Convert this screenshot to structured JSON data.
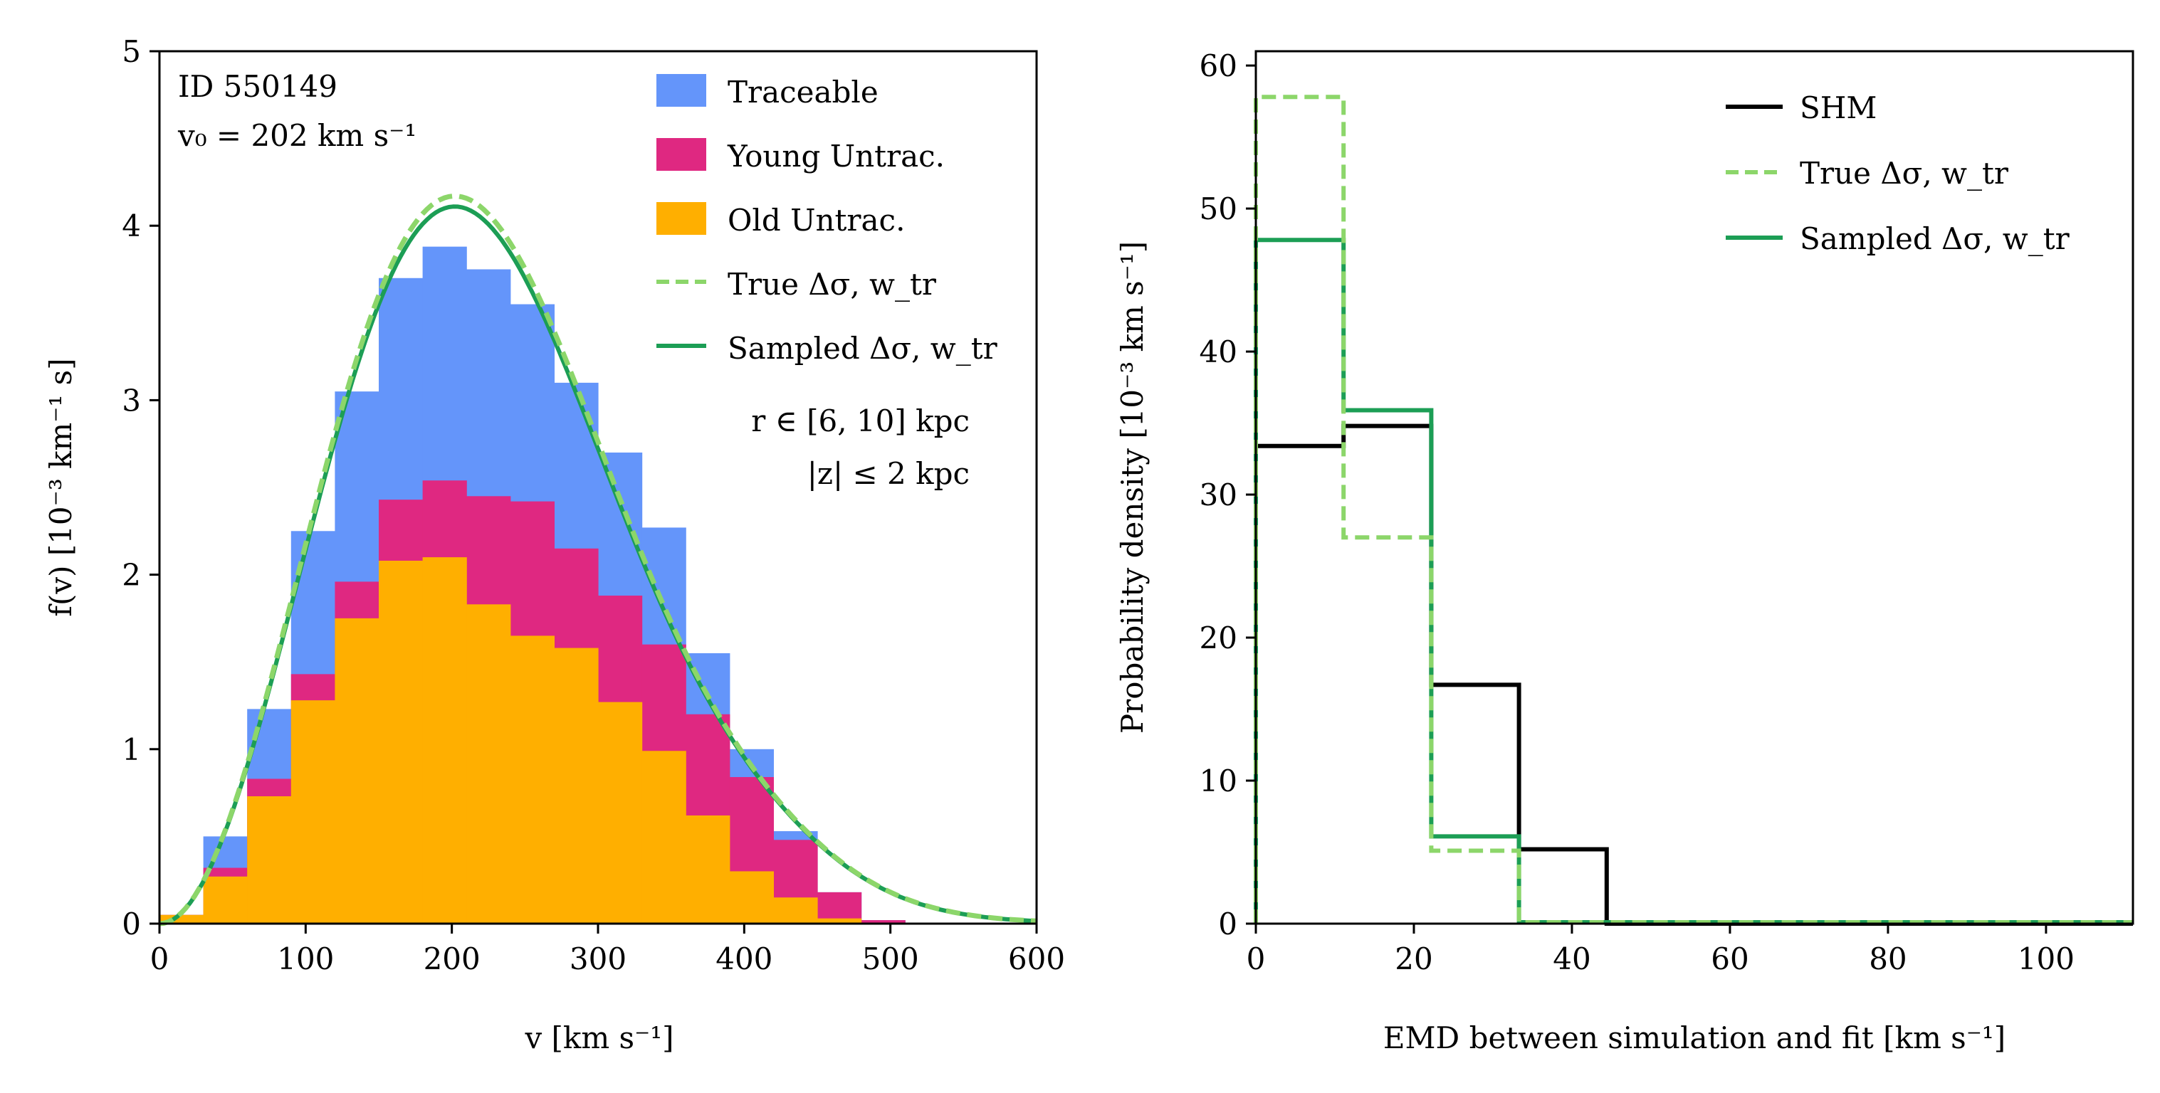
{
  "colors": {
    "traceable": "#6495FA",
    "young": "#DF2881",
    "old": "#FFAF00",
    "true_fit": "#8CD66A",
    "sampled_fit": "#1C9E55",
    "shm": "#000000"
  },
  "chart_data": [
    {
      "type": "bar",
      "subtype": "stacked-histogram-with-fit-curves",
      "title": "",
      "annotation": {
        "id": "ID 550149",
        "v0": "v₀ = 202 km s⁻¹"
      },
      "region_text": [
        "r ∈ [6, 10] kpc",
        "|z| ≤ 2 kpc"
      ],
      "xlabel": "v [km s⁻¹]",
      "ylabel": "f(v) [10⁻³ km⁻¹ s]",
      "xlim": [
        0,
        600
      ],
      "ylim": [
        0,
        5
      ],
      "xticks": [
        0,
        100,
        200,
        300,
        400,
        500,
        600
      ],
      "yticks": [
        0,
        1,
        2,
        3,
        4,
        5
      ],
      "bin_edges": [
        0,
        30,
        60,
        90,
        120,
        150,
        180,
        210,
        240,
        270,
        300,
        330,
        360,
        390,
        420,
        450,
        480,
        510
      ],
      "series": [
        {
          "name": "Old Untrac.",
          "cumulative": [
            0.05,
            0.27,
            0.73,
            1.28,
            1.75,
            2.08,
            2.1,
            1.83,
            1.65,
            1.58,
            1.27,
            0.99,
            0.62,
            0.3,
            0.15,
            0.03,
            0.0
          ]
        },
        {
          "name": "Young Untrac.",
          "cumulative": [
            0.05,
            0.32,
            0.83,
            1.43,
            1.96,
            2.43,
            2.54,
            2.45,
            2.42,
            2.15,
            1.88,
            1.6,
            1.2,
            0.84,
            0.48,
            0.18,
            0.02
          ]
        },
        {
          "name": "Traceable",
          "cumulative": [
            0.05,
            0.5,
            1.23,
            2.25,
            3.05,
            3.7,
            3.88,
            3.75,
            3.55,
            3.1,
            2.7,
            2.27,
            1.55,
            1.0,
            0.53,
            0.18,
            0.02
          ]
        }
      ],
      "curves": [
        {
          "name": "True Δσ, w_tr",
          "style": "dashed",
          "v0": 202,
          "scale": 4.17,
          "tail_bump": 0.09
        },
        {
          "name": "Sampled Δσ, w_tr",
          "style": "solid",
          "v0": 202,
          "scale": 4.11,
          "tail_bump": 0.09
        }
      ],
      "legend": {
        "placement": "top-right",
        "entries": [
          {
            "label": "Traceable",
            "kind": "patch"
          },
          {
            "label": "Young Untrac.",
            "kind": "patch"
          },
          {
            "label": "Old Untrac.",
            "kind": "patch"
          },
          {
            "label": "True Δσ, w_tr",
            "kind": "dashed-line"
          },
          {
            "label": "Sampled Δσ, w_tr",
            "kind": "solid-line"
          }
        ]
      }
    },
    {
      "type": "bar",
      "subtype": "step-histogram",
      "title": "",
      "xlabel": "EMD between simulation and fit [km s⁻¹]",
      "ylabel": "Probability density [10⁻³ km s⁻¹]",
      "xlim": [
        0,
        111
      ],
      "ylim": [
        0,
        61
      ],
      "xticks": [
        0,
        20,
        40,
        60,
        80,
        100
      ],
      "yticks": [
        0,
        10,
        20,
        30,
        40,
        50,
        60
      ],
      "series": [
        {
          "name": "SHM",
          "style": "solid",
          "edges": [
            0,
            11.1,
            22.2,
            33.3,
            44.4,
            111
          ],
          "values": [
            33.4,
            34.8,
            16.7,
            5.2,
            0.0
          ]
        },
        {
          "name": "True Δσ, w_tr",
          "style": "dashed",
          "edges": [
            0,
            11.1,
            22.2,
            33.3,
            111
          ],
          "values": [
            57.8,
            27.0,
            5.1,
            0.1
          ]
        },
        {
          "name": "Sampled Δσ, w_tr",
          "style": "solid",
          "edges": [
            0,
            11.1,
            22.2,
            33.3,
            111
          ],
          "values": [
            47.8,
            35.9,
            6.1,
            0.1
          ]
        }
      ],
      "legend": {
        "placement": "top-right",
        "entries": [
          {
            "label": "SHM",
            "kind": "solid-line-black"
          },
          {
            "label": "True Δσ, w_tr",
            "kind": "dashed-line"
          },
          {
            "label": "Sampled Δσ, w_tr",
            "kind": "solid-line"
          }
        ]
      }
    }
  ]
}
